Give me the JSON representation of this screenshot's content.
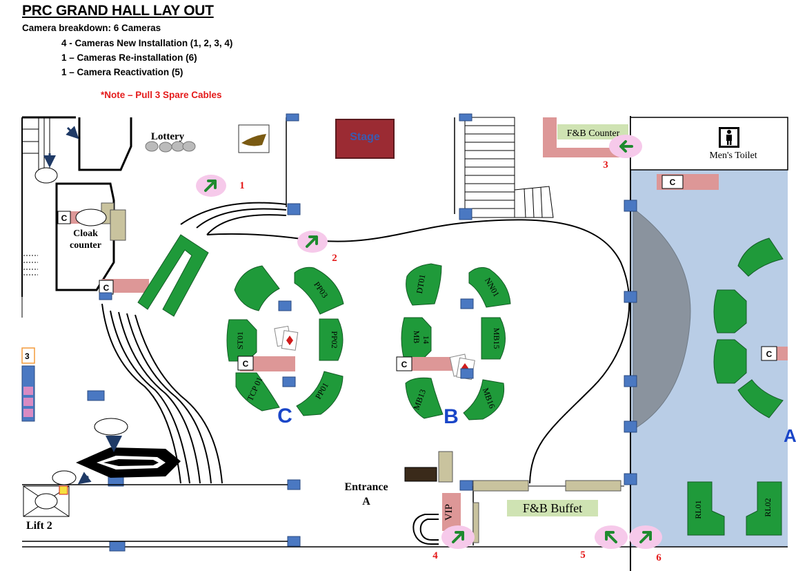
{
  "title": "PRC GRAND HALL LAY OUT",
  "breakdown": {
    "line1": "Camera breakdown: 6 Cameras",
    "line2": "4 - Cameras New Installation (1, 2, 3, 4)",
    "line3": "1 – Cameras Re-installation (6)",
    "line4": "1 – Camera Reactivation (5)"
  },
  "note": "*Note – Pull 3 Spare Cables",
  "labels": {
    "lottery": "Lottery",
    "stage": "Stage",
    "fb_counter": "F&B Counter",
    "mens_toilet": "Men's Toilet",
    "cloak1": "Cloak",
    "cloak2": "counter",
    "entrance1": "Entrance",
    "entrance2": "A",
    "fb_buffet": "F&B Buffet",
    "vip": "VIP",
    "lift": "Lift 2",
    "area_c": "C",
    "area_b": "B",
    "area_a": "A",
    "sign_3": "3"
  },
  "cameras": [
    {
      "num": "1"
    },
    {
      "num": "2"
    },
    {
      "num": "3"
    },
    {
      "num": "4"
    },
    {
      "num": "5"
    },
    {
      "num": "6"
    }
  ],
  "tables": {
    "pp03": "PP03",
    "st01": "ST01",
    "pp02": "PP02",
    "tcp01": "TCP 01",
    "pp01": "PP01",
    "dt01": "DT01",
    "nn01": "NN01",
    "mb14a": "MB",
    "mb14b": "14",
    "mb15": "MB15",
    "mb13": "MB13",
    "mb16": "MB16",
    "rl01": "RL01",
    "rl02": "RL02"
  },
  "colors": {
    "table_green": "#1f9a3a",
    "camera_pink": "#f6c9ea",
    "camera_arrow": "#1f8a2f",
    "pillar_blue": "#4a78c2",
    "hall_blue": "#b9cde6",
    "counter_pink": "#dd9797",
    "label_bg": "#cfe3b3",
    "stage": "#9b2b33",
    "red_num": "#e41a1a"
  }
}
